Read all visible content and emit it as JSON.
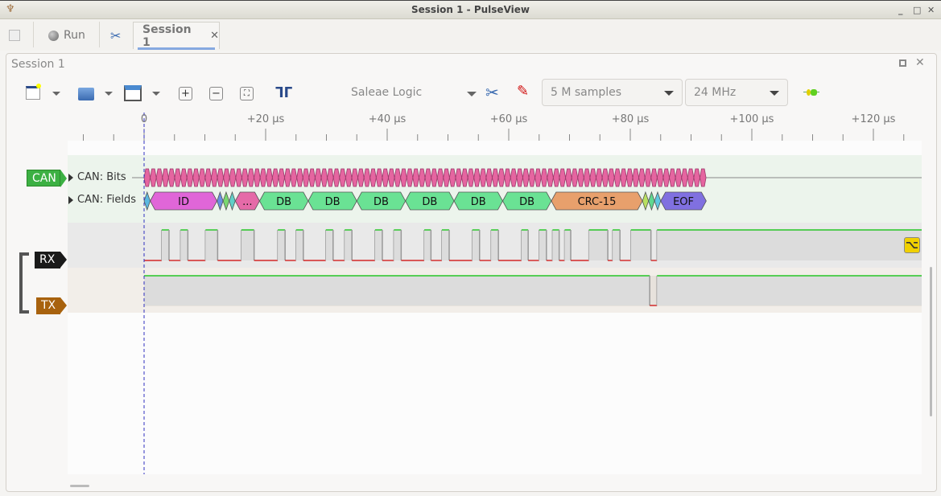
{
  "window": {
    "title": "Session 1 - PulseView",
    "controls": [
      "minimize",
      "maximize",
      "close"
    ]
  },
  "tabbar": {
    "run_label": "Run",
    "session_tab": "Session 1",
    "close_glyph": "✕"
  },
  "session": {
    "title": "Session 1"
  },
  "toolbar": {
    "device": "Saleae Logic",
    "samples": "5 M samples",
    "samplerate": "24 MHz",
    "icons": [
      "new-session-icon",
      "open-icon",
      "save-icon",
      "zoom-in-icon",
      "zoom-out-icon",
      "zoom-fit-icon",
      "cursor-icon",
      "device-config-icon",
      "probe-icon",
      "decoder-add-icon"
    ]
  },
  "ruler": {
    "unit": "µs",
    "labels": [
      "0",
      "+20 µs",
      "+40 µs",
      "+60 µs",
      "+80 µs",
      "+100 µs",
      "+120 µs"
    ],
    "major_us": [
      0,
      20,
      40,
      60,
      80,
      100,
      120
    ],
    "minor_step_us": 5
  },
  "decoder": {
    "badge": "CAN",
    "color": "#3cb043",
    "rows": [
      {
        "label": "CAN: Bits"
      },
      {
        "label": "CAN: Fields"
      }
    ],
    "bits": {
      "count": 92,
      "start_us": 0,
      "bit_us": 1.005,
      "color": "#e565a0"
    },
    "fields": [
      {
        "label": "",
        "start": 0,
        "end": 1,
        "color": "#5bb8e0"
      },
      {
        "label": "ID",
        "start": 1,
        "end": 12,
        "color": "#e066d8"
      },
      {
        "label": "",
        "start": 12,
        "end": 13,
        "color": "#6a8fe0"
      },
      {
        "label": "",
        "start": 13,
        "end": 14,
        "color": "#7ad870"
      },
      {
        "label": "",
        "start": 14,
        "end": 15,
        "color": "#60d0c8"
      },
      {
        "label": "...",
        "start": 15,
        "end": 19,
        "color": "#e56aa8"
      },
      {
        "label": "DB",
        "start": 19,
        "end": 27,
        "color": "#6ae294"
      },
      {
        "label": "DB",
        "start": 27,
        "end": 35,
        "color": "#6ae294"
      },
      {
        "label": "DB",
        "start": 35,
        "end": 43,
        "color": "#6ae294"
      },
      {
        "label": "DB",
        "start": 43,
        "end": 51,
        "color": "#6ae294"
      },
      {
        "label": "DB",
        "start": 51,
        "end": 59,
        "color": "#6ae294"
      },
      {
        "label": "DB",
        "start": 59,
        "end": 67,
        "color": "#6ae294"
      },
      {
        "label": "CRC-15",
        "start": 67,
        "end": 82,
        "color": "#e8a06c"
      },
      {
        "label": "",
        "start": 82,
        "end": 83,
        "color": "#b8e060"
      },
      {
        "label": "",
        "start": 83,
        "end": 84,
        "color": "#60d890"
      },
      {
        "label": "",
        "start": 84,
        "end": 85,
        "color": "#60c8e0"
      },
      {
        "label": "EOF",
        "start": 85,
        "end": 92.5,
        "color": "#8070e0"
      }
    ]
  },
  "channels": [
    {
      "name": "RX",
      "color": "#1a1a1a",
      "initial": 0,
      "edges_us": [
        2.9,
        4.1,
        6.0,
        7.2,
        10.1,
        12.1,
        16.0,
        18.1,
        22.0,
        23.2,
        25.0,
        26.2,
        29.9,
        31.1,
        33.0,
        34.2,
        38.0,
        39.2,
        41.1,
        42.3,
        46.1,
        47.2,
        49.0,
        50.2,
        54.0,
        55.2,
        57.1,
        58.3,
        62.1,
        63.2,
        65.0,
        66.2,
        67.2,
        68.3,
        69.2,
        70.2,
        73.2,
        76.3,
        77.1,
        78.3,
        80.1,
        83.4,
        84.4
      ],
      "trigger": "falling-edge"
    },
    {
      "name": "TX",
      "color": "#a8620e",
      "initial": 1,
      "edges_us": [
        83.2,
        84.4
      ]
    }
  ],
  "colors": {
    "high": "#00c000",
    "low": "#d00000",
    "cursor": "#3030c0"
  }
}
